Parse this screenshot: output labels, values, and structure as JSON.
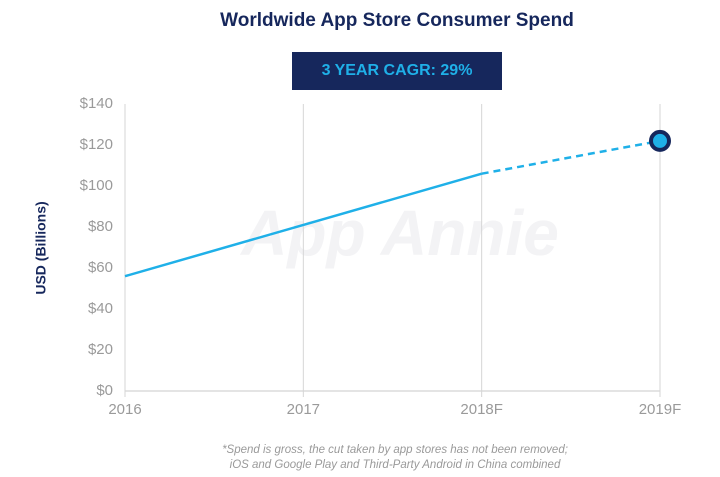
{
  "chart_data": {
    "type": "line",
    "title": "Worldwide App Store Consumer Spend",
    "badge": "3 YEAR CAGR: 29%",
    "ylabel": "USD (Billions)",
    "watermark": "App Annie",
    "footnote": [
      "*Spend is gross, the cut taken by app stores has not been removed;",
      "iOS and Google Play and Third-Party Android in China combined"
    ],
    "categories": [
      "2016",
      "2017",
      "2018F",
      "2019F"
    ],
    "series": [
      {
        "color": "#1fb0e8",
        "dashed": false,
        "end_marker": false,
        "values": [
          56,
          81,
          106,
          null
        ]
      },
      {
        "color": "#1fb0e8",
        "dashed": true,
        "end_marker": true,
        "values": [
          null,
          null,
          106,
          122
        ]
      }
    ],
    "ylim": [
      0,
      140
    ],
    "yticks": [
      {
        "value": 0,
        "label": "$0"
      },
      {
        "value": 20,
        "label": "$20"
      },
      {
        "value": 40,
        "label": "$40"
      },
      {
        "value": 60,
        "label": "$60"
      },
      {
        "value": 80,
        "label": "$80"
      },
      {
        "value": 100,
        "label": "$100"
      },
      {
        "value": 120,
        "label": "$120"
      },
      {
        "value": 140,
        "label": "$140"
      }
    ],
    "grid": "vertical"
  }
}
